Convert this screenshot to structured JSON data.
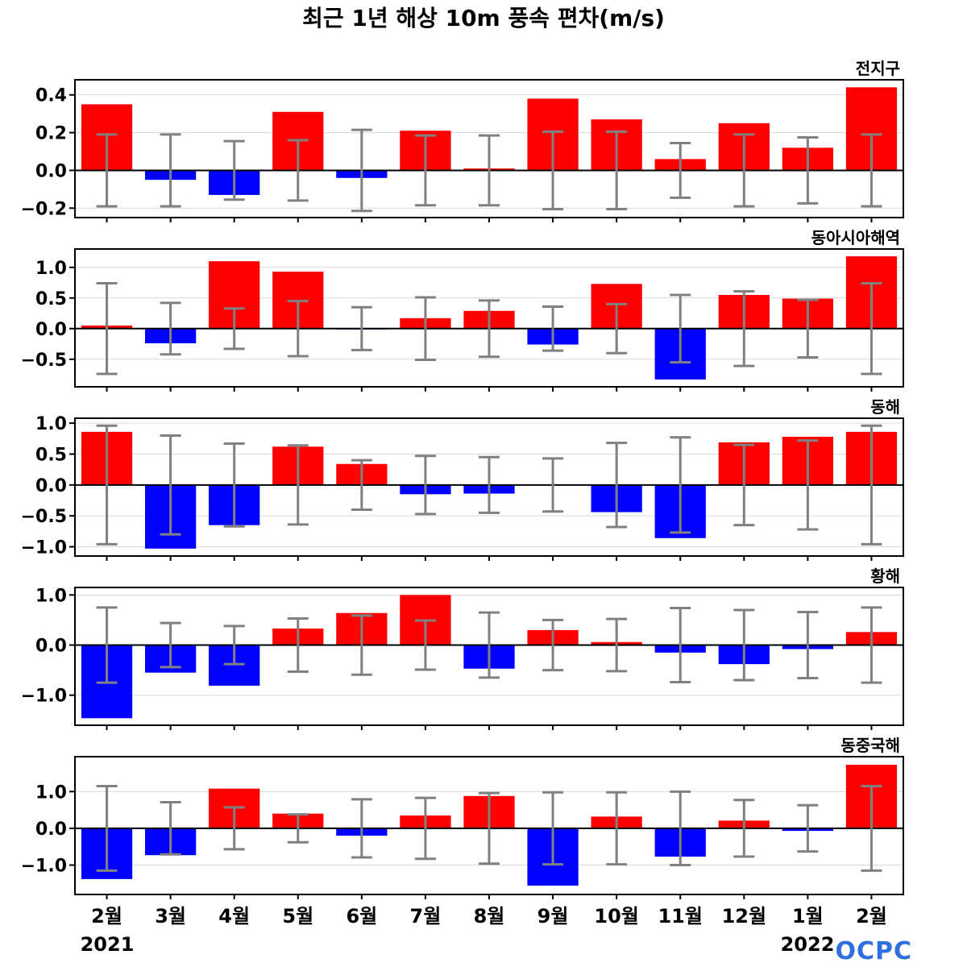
{
  "chart_data": {
    "type": "bar",
    "title": "최근 1년 해상 10m 풍속 편차(m/s)",
    "categories": [
      "2월",
      "3월",
      "4월",
      "5월",
      "6월",
      "7월",
      "8월",
      "9월",
      "10월",
      "11월",
      "12월",
      "1월",
      "2월"
    ],
    "year_labels": [
      "2021",
      "2022"
    ],
    "logo": "OCPC",
    "colors": {
      "positive": "#ff0000",
      "negative": "#0000ff",
      "errorbar": "#808080",
      "zero_line": "#000000",
      "grid": "#d9d9d9"
    },
    "grid": true,
    "panels": [
      {
        "region": "전지구",
        "ylim": [
          -0.25,
          0.48
        ],
        "yticks": [
          -0.2,
          0.0,
          0.2,
          0.4
        ],
        "ytick_labels": [
          "−0.2",
          "0.0",
          "0.2",
          "0.4"
        ],
        "values": [
          0.35,
          -0.05,
          -0.13,
          0.31,
          -0.04,
          0.21,
          0.01,
          0.38,
          0.27,
          0.06,
          0.25,
          0.12,
          0.44
        ],
        "error": [
          0.19,
          0.19,
          0.155,
          0.16,
          0.215,
          0.185,
          0.185,
          0.205,
          0.205,
          0.145,
          0.19,
          0.175,
          0.19
        ]
      },
      {
        "region": "동아시아해역",
        "ylim": [
          -0.95,
          1.3
        ],
        "yticks": [
          -0.5,
          0.0,
          0.5,
          1.0
        ],
        "ytick_labels": [
          "−0.5",
          "0.0",
          "0.5",
          "1.0"
        ],
        "values": [
          0.05,
          -0.24,
          1.1,
          0.93,
          -0.01,
          0.17,
          0.29,
          -0.26,
          0.73,
          -0.83,
          0.55,
          0.49,
          1.18
        ],
        "error": [
          0.74,
          0.42,
          0.33,
          0.45,
          0.35,
          0.51,
          0.46,
          0.36,
          0.4,
          0.55,
          0.61,
          0.47,
          0.74
        ]
      },
      {
        "region": "동해",
        "ylim": [
          -1.15,
          1.08
        ],
        "yticks": [
          -1.0,
          -0.5,
          0.0,
          0.5,
          1.0
        ],
        "ytick_labels": [
          "−1.0",
          "−0.5",
          "0.0",
          "0.5",
          "1.0"
        ],
        "values": [
          0.86,
          -1.03,
          -0.65,
          0.62,
          0.34,
          -0.15,
          -0.14,
          0.01,
          -0.44,
          -0.86,
          0.69,
          0.78,
          0.86
        ],
        "error": [
          0.96,
          0.8,
          0.67,
          0.64,
          0.4,
          0.47,
          0.45,
          0.43,
          0.68,
          0.77,
          0.65,
          0.72,
          0.96
        ]
      },
      {
        "region": "황해",
        "ylim": [
          -1.6,
          1.15
        ],
        "yticks": [
          -1.0,
          0.0,
          1.0
        ],
        "ytick_labels": [
          "−1.0",
          "0.0",
          "1.0"
        ],
        "values": [
          -1.46,
          -0.55,
          -0.81,
          0.33,
          0.64,
          1.0,
          -0.47,
          0.3,
          0.06,
          -0.15,
          -0.38,
          -0.08,
          0.26
        ],
        "error": [
          0.75,
          0.44,
          0.38,
          0.53,
          0.59,
          0.49,
          0.65,
          0.5,
          0.52,
          0.74,
          0.7,
          0.66,
          0.75
        ]
      },
      {
        "region": "동중국해",
        "ylim": [
          -1.8,
          1.95
        ],
        "yticks": [
          -1.0,
          0.0,
          1.0
        ],
        "ytick_labels": [
          "−1.0",
          "0.0",
          "1.0"
        ],
        "values": [
          -1.38,
          -0.73,
          1.08,
          0.4,
          -0.2,
          0.35,
          0.88,
          -1.56,
          0.32,
          -0.77,
          0.21,
          -0.07,
          1.73
        ],
        "error": [
          1.15,
          0.71,
          0.57,
          0.38,
          0.79,
          0.83,
          0.96,
          0.98,
          0.98,
          1.0,
          0.77,
          0.63,
          1.15
        ]
      }
    ]
  }
}
